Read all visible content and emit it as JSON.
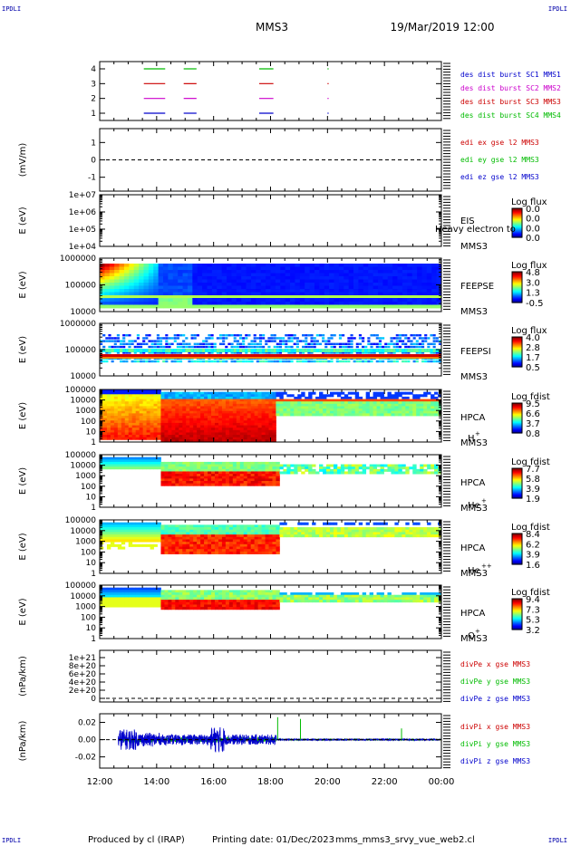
{
  "header": {
    "spacecraft": "MMS3",
    "datetime": "19/Mar/2019 12:00",
    "corner_mark": "IPDLI"
  },
  "footer": {
    "produced_by": "Produced by cl (IRAP)",
    "printing_date": "Printing date: 01/Dec/2023",
    "filename": "mms_mms3_srvy_vue_web2.cl"
  },
  "chart_data": {
    "type": "stacked-timeseries",
    "x_axis": {
      "range_hours": [
        12,
        24
      ],
      "ticks": [
        "12:00",
        "14:00",
        "16:00",
        "18:00",
        "20:00",
        "22:00",
        "00:00"
      ]
    },
    "panels": [
      {
        "id": "burst",
        "type": "timeline",
        "y_ticks": [
          "1",
          "2",
          "3",
          "4"
        ],
        "legend": [
          {
            "label": "des dist burst SC1 MMS1",
            "color": "#0000cc"
          },
          {
            "label": "des dist burst SC2 MMS2",
            "color": "#cc00cc"
          },
          {
            "label": "des dist burst SC3 MMS3",
            "color": "#cc0000"
          },
          {
            "label": "des dist burst SC4 MMS4",
            "color": "#00bb00"
          }
        ],
        "segments": [
          {
            "row": 4,
            "color": "#00bb00",
            "ranges": [
              [
                13.55,
                14.3
              ],
              [
                14.95,
                15.4
              ],
              [
                17.6,
                18.1
              ],
              [
                20.0,
                20.04
              ]
            ]
          },
          {
            "row": 3,
            "color": "#cc0000",
            "ranges": [
              [
                13.55,
                14.3
              ],
              [
                14.95,
                15.4
              ],
              [
                17.6,
                18.1
              ],
              [
                20.0,
                20.04
              ]
            ]
          },
          {
            "row": 2,
            "color": "#cc00cc",
            "ranges": [
              [
                13.55,
                14.3
              ],
              [
                14.95,
                15.4
              ],
              [
                17.6,
                18.1
              ],
              [
                20.0,
                20.04
              ]
            ]
          },
          {
            "row": 1,
            "color": "#0000cc",
            "ranges": [
              [
                13.55,
                14.3
              ],
              [
                14.95,
                15.4
              ],
              [
                17.6,
                18.1
              ],
              [
                20.0,
                20.04
              ]
            ]
          }
        ]
      },
      {
        "id": "edi",
        "type": "line",
        "ylabel": "(mV/m)",
        "y_ticks": [
          "-1",
          "0",
          "1"
        ],
        "ylim": [
          -1.8,
          1.8
        ],
        "zero_dashed": true,
        "legend": [
          {
            "label": "edi ex gse l2 MMS3",
            "color": "#cc0000"
          },
          {
            "label": "edi ey gse l2 MMS3",
            "color": "#00bb00"
          },
          {
            "label": "edi ez gse l2 MMS3",
            "color": "#0000cc"
          }
        ]
      },
      {
        "id": "eis",
        "type": "spectrogram",
        "ylabel": "E (eV)",
        "y_ticks": [
          "1e+04",
          "1e+05",
          "1e+06",
          "1e+07"
        ],
        "instrument": [
          "EIS",
          "MMS3"
        ],
        "overlay_text": "Heavy electron to",
        "cbar_title": "Log flux",
        "cbar_ticks": [
          "0.0",
          "0.0",
          "0.0",
          "0.0"
        ],
        "data": "empty"
      },
      {
        "id": "feepse",
        "type": "spectrogram",
        "ylabel": "E (eV)",
        "y_ticks": [
          "10000",
          "100000",
          "1000000"
        ],
        "instrument": [
          "FEEPSE",
          "MMS3"
        ],
        "cbar_title": "Log flux",
        "cbar_ticks": [
          "4.8",
          "3.0",
          "1.3",
          "-0.5"
        ]
      },
      {
        "id": "feepsi",
        "type": "spectrogram",
        "ylabel": "E (eV)",
        "y_ticks": [
          "10000",
          "100000",
          "1000000"
        ],
        "instrument": [
          "FEEPSI",
          "MMS3"
        ],
        "cbar_title": "Log flux",
        "cbar_ticks": [
          "4.0",
          "2.8",
          "1.7",
          "0.5"
        ]
      },
      {
        "id": "hpca_h",
        "type": "spectrogram",
        "ylabel": "E (eV)",
        "y_ticks": [
          "1",
          "10",
          "100",
          "1000",
          "10000",
          "100000"
        ],
        "instrument": [
          "HPCA",
          "MMS3"
        ],
        "species": "H",
        "species_charge": "+",
        "cbar_title": "Log fdist",
        "cbar_ticks": [
          "9.5",
          "6.6",
          "3.7",
          "0.8"
        ]
      },
      {
        "id": "hpca_he1",
        "type": "spectrogram",
        "ylabel": "E (eV)",
        "y_ticks": [
          "1",
          "10",
          "100",
          "1000",
          "10000",
          "100000"
        ],
        "instrument": [
          "HPCA",
          "MMS3"
        ],
        "species": "He",
        "species_charge": "+",
        "cbar_title": "Log fdist",
        "cbar_ticks": [
          "7.7",
          "5.8",
          "3.9",
          "1.9"
        ]
      },
      {
        "id": "hpca_he2",
        "type": "spectrogram",
        "ylabel": "E (eV)",
        "y_ticks": [
          "1",
          "10",
          "100",
          "1000",
          "10000",
          "100000"
        ],
        "instrument": [
          "HPCA",
          "MMS3"
        ],
        "species": "He",
        "species_charge": "++",
        "cbar_title": "Log fdist",
        "cbar_ticks": [
          "8.4",
          "6.2",
          "3.9",
          "1.6"
        ]
      },
      {
        "id": "hpca_o",
        "type": "spectrogram",
        "ylabel": "E (eV)",
        "y_ticks": [
          "1",
          "10",
          "100",
          "1000",
          "10000",
          "100000"
        ],
        "instrument": [
          "HPCA",
          "MMS3"
        ],
        "species": "O",
        "species_charge": "+",
        "cbar_title": "Log fdist",
        "cbar_ticks": [
          "9.4",
          "7.3",
          "5.3",
          "3.2"
        ]
      },
      {
        "id": "divpe",
        "type": "line",
        "ylabel": "(nPa/km)",
        "y_ticks": [
          "0",
          "2e+20",
          "4e+20",
          "6e+20",
          "8e+20",
          "1e+21"
        ],
        "zero_dashed": true,
        "legend": [
          {
            "label": "divPe x gse MMS3",
            "color": "#cc0000"
          },
          {
            "label": "divPe y gse MMS3",
            "color": "#00bb00"
          },
          {
            "label": "divPe z gse MMS3",
            "color": "#0000cc"
          }
        ]
      },
      {
        "id": "divpi",
        "type": "line",
        "ylabel": "(nPa/km)",
        "y_ticks": [
          "-0.02",
          "0.00",
          "0.02"
        ],
        "ylim": [
          -0.033,
          0.03
        ],
        "zero_dashed": true,
        "legend": [
          {
            "label": "divPi x gse MMS3",
            "color": "#cc0000"
          },
          {
            "label": "divPi y gse MMS3",
            "color": "#00bb00"
          },
          {
            "label": "divPi z gse MMS3",
            "color": "#0000cc"
          }
        ]
      }
    ]
  }
}
